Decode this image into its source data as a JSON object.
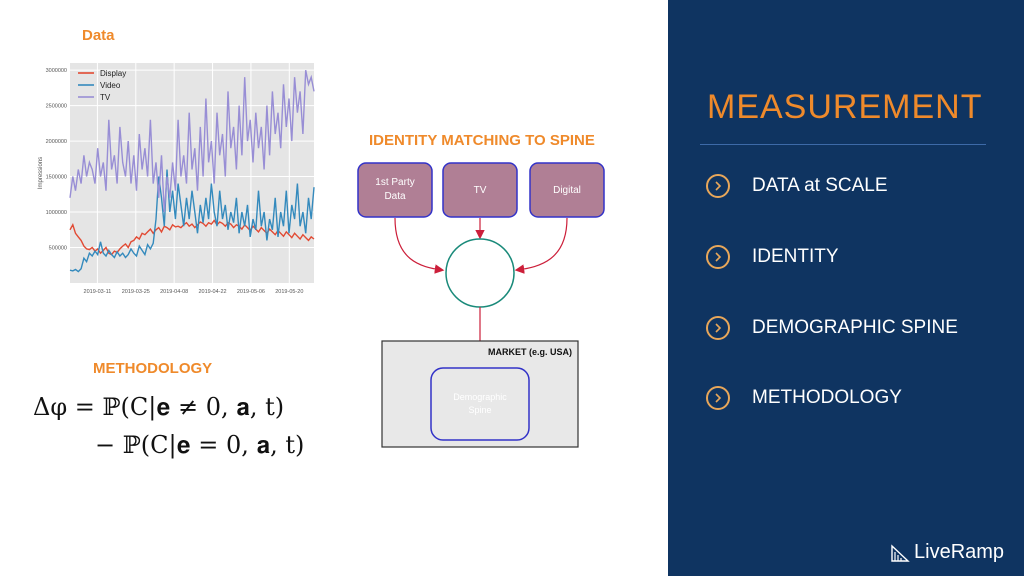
{
  "left": {
    "data_title": "Data",
    "methodology_title": "METHODOLOGY",
    "identity_title": "IDENTITY MATCHING TO SPINE",
    "formula": {
      "line1": "Δφ = ℙ(C|𝐞 ≠ 0, 𝐚, t)",
      "line2": "− ℙ(C|𝐞 = 0, 𝐚, t)"
    },
    "diagram": {
      "box_1st_party": [
        "1st Party",
        "Data"
      ],
      "box_tv": "TV",
      "box_digital": "Digital",
      "market_label": "MARKET (e.g. USA)",
      "demographic_box": [
        "Demographic",
        "Spine"
      ],
      "box_fill": "#b07f95",
      "box_border": "#3232c8",
      "arrow_color": "#cc1f3a",
      "circle_border": "#1a8a7a"
    }
  },
  "right": {
    "title": "MEASUREMENT",
    "items": [
      {
        "label": "DATA at SCALE",
        "icon": "chevron-right-icon"
      },
      {
        "label": "IDENTITY",
        "icon": "chevron-right-icon"
      },
      {
        "label": "DEMOGRAPHIC SPINE",
        "icon": "chevron-right-icon"
      },
      {
        "label": "METHODOLOGY",
        "icon": "chevron-right-icon"
      }
    ],
    "logo_text": "LiveRamp",
    "background": "#0f3461",
    "accent": "#ef8a2b"
  },
  "chart_data": {
    "type": "line",
    "title": "",
    "xlabel": "",
    "ylabel": "Impressions",
    "ylim": [
      0,
      3100000
    ],
    "yticks": [
      500000,
      1000000,
      1500000,
      2000000,
      2500000,
      3000000
    ],
    "xticks": [
      "2019-03-11",
      "2019-03-25",
      "2019-04-08",
      "2019-04-22",
      "2019-05-06",
      "2019-05-20"
    ],
    "x_start": "2019-03-01",
    "x_end": "2019-05-29",
    "grid": true,
    "legend": "top-left",
    "series": [
      {
        "name": "Display",
        "color": "#e24a33",
        "values": [
          750000,
          820000,
          700000,
          650000,
          600000,
          520000,
          480000,
          470000,
          500000,
          450000,
          480000,
          420000,
          460000,
          500000,
          420000,
          400000,
          450000,
          430000,
          480000,
          520000,
          550000,
          500000,
          580000,
          600000,
          650000,
          620000,
          700000,
          680000,
          720000,
          760000,
          700000,
          750000,
          780000,
          720000,
          800000,
          780000,
          750000,
          820000,
          790000,
          800000,
          780000,
          820000,
          850000,
          800000,
          830000,
          780000,
          820000,
          860000,
          840000,
          800000,
          850000,
          830000,
          880000,
          820000,
          860000,
          840000,
          800000,
          850000,
          830000,
          780000,
          820000,
          800000,
          760000,
          820000,
          780000,
          740000,
          800000,
          760000,
          720000,
          780000,
          740000,
          700000,
          760000,
          720000,
          680000,
          740000,
          700000,
          660000,
          720000,
          680000,
          640000,
          700000,
          660000,
          620000,
          680000,
          640000,
          600000,
          650000,
          620000
        ]
      },
      {
        "name": "Video",
        "color": "#348abd",
        "values": [
          180000,
          170000,
          190000,
          160000,
          200000,
          350000,
          300000,
          420000,
          380000,
          450000,
          400000,
          580000,
          420000,
          380000,
          460000,
          400000,
          360000,
          440000,
          380000,
          420000,
          360000,
          400000,
          480000,
          420000,
          380000,
          520000,
          460000,
          400000,
          540000,
          480000,
          560000,
          900000,
          1500000,
          1200000,
          800000,
          1600000,
          1000000,
          1300000,
          900000,
          1400000,
          1100000,
          800000,
          1200000,
          900000,
          1300000,
          1000000,
          700000,
          1100000,
          850000,
          1200000,
          900000,
          1400000,
          1000000,
          800000,
          1300000,
          900000,
          1100000,
          750000,
          1000000,
          850000,
          1200000,
          700000,
          1000000,
          800000,
          1100000,
          650000,
          900000,
          750000,
          1300000,
          800000,
          1000000,
          600000,
          900000,
          750000,
          1200000,
          650000,
          1000000,
          800000,
          1300000,
          700000,
          1100000,
          900000,
          1400000,
          800000,
          1000000,
          700000,
          1200000,
          900000,
          1350000
        ]
      },
      {
        "name": "TV",
        "color": "#988ed5",
        "values": [
          1200000,
          1500000,
          1300000,
          1600000,
          1400000,
          1800000,
          1500000,
          1700000,
          1600000,
          1400000,
          1900000,
          1500000,
          1700000,
          1300000,
          2300000,
          1600000,
          1800000,
          1400000,
          2200000,
          1700000,
          1500000,
          2000000,
          1400000,
          1800000,
          1300000,
          2100000,
          1600000,
          1900000,
          1500000,
          2300000,
          1400000,
          1700000,
          1200000,
          1800000,
          1000000,
          1500000,
          1200000,
          1700000,
          1300000,
          2300000,
          1500000,
          1800000,
          1400000,
          2400000,
          1600000,
          1900000,
          1300000,
          2200000,
          1500000,
          2600000,
          1700000,
          2000000,
          1400000,
          2400000,
          1800000,
          2100000,
          1500000,
          2700000,
          1900000,
          2200000,
          1600000,
          2500000,
          1800000,
          2900000,
          2000000,
          2300000,
          1700000,
          2400000,
          1900000,
          2200000,
          1600000,
          2500000,
          1800000,
          2700000,
          2100000,
          2400000,
          1900000,
          2800000,
          2200000,
          2600000,
          2000000,
          2900000,
          2400000,
          2700000,
          2100000,
          3000000,
          2800000,
          2900000,
          2700000
        ]
      }
    ]
  }
}
